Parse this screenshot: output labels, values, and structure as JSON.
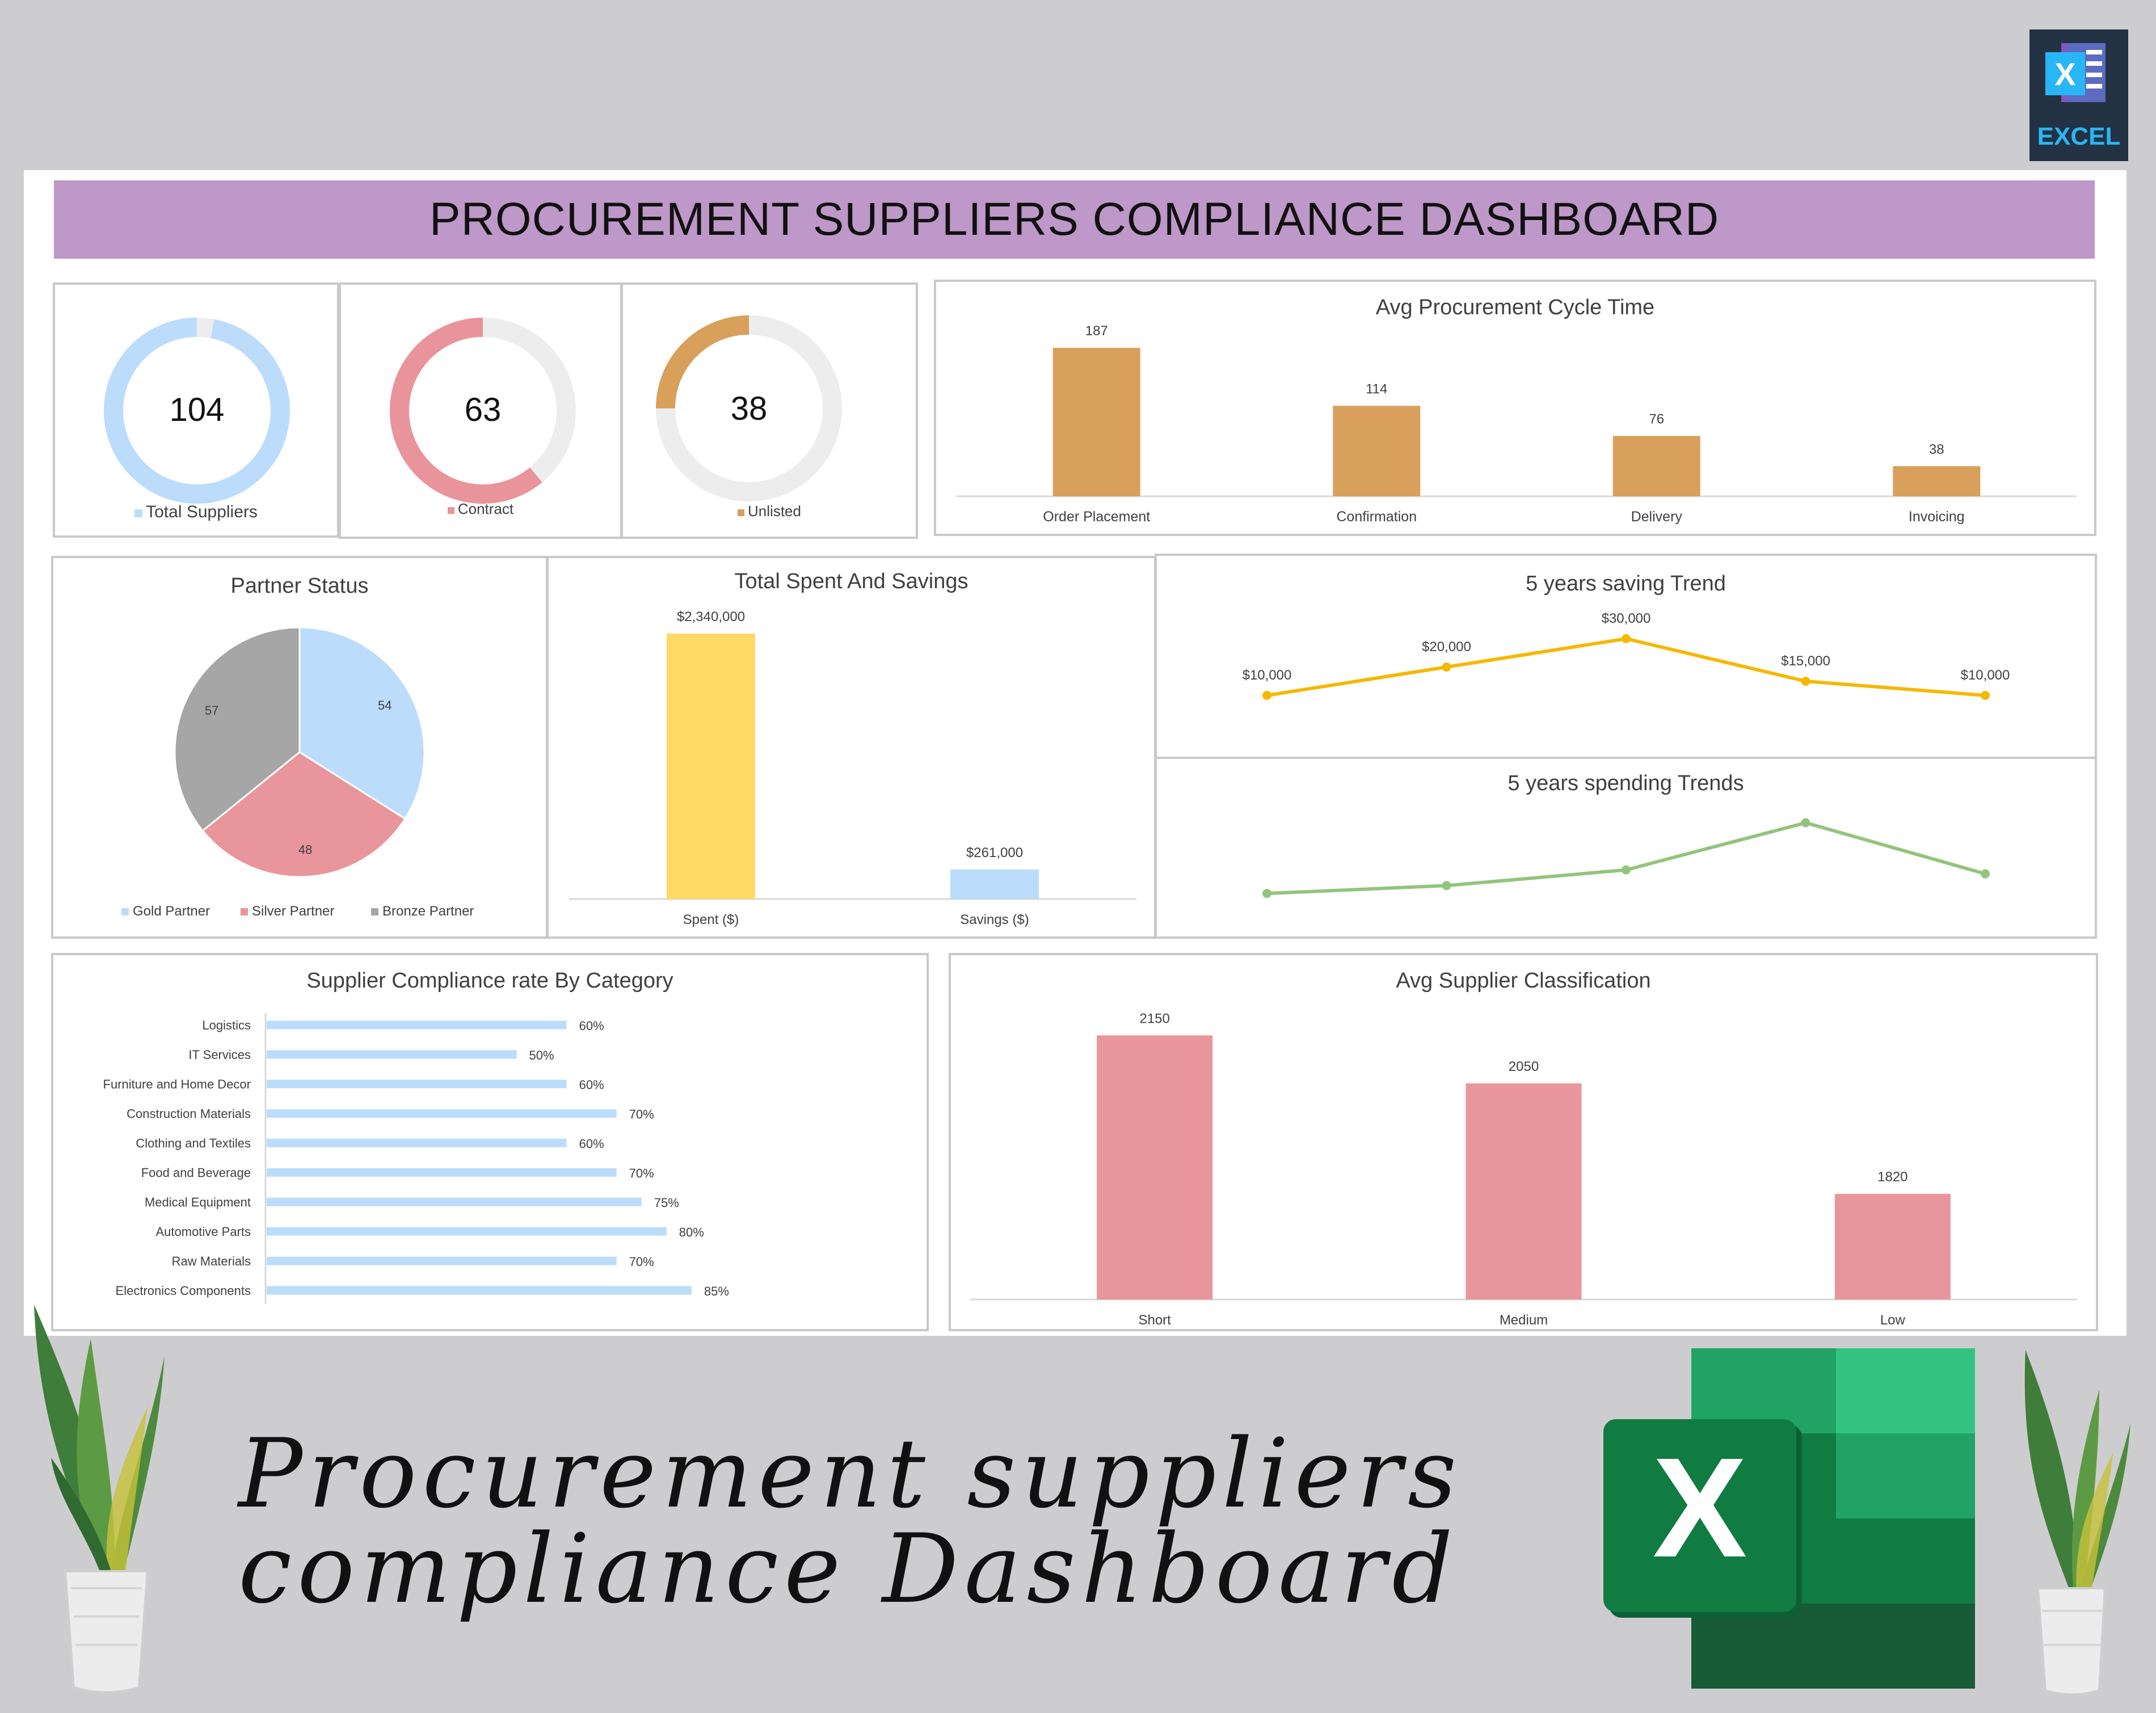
{
  "badge": {
    "label": "EXCEL"
  },
  "dashboard": {
    "title": "PROCUREMENT SUPPLIERS COMPLIANCE DASHBOARD"
  },
  "kpis": [
    {
      "value": "104",
      "label": "Total Suppliers",
      "fraction": 0.97,
      "color": "#bcdcfb"
    },
    {
      "value": "63",
      "label": "Contract",
      "fraction": 0.61,
      "color": "#e8949a"
    },
    {
      "value": "38",
      "label": "Unlisted",
      "fraction": 0.25,
      "color": "#d9a05b"
    }
  ],
  "colors": {
    "banner": "#be98c8",
    "orange": "#d9a05b",
    "pink": "#e8969c",
    "blue": "#bcdcfb",
    "gray": "#a6a6a6",
    "yellow": "#ffd966",
    "gold_line": "#f5b800",
    "green_line": "#93c47d"
  },
  "cycle_chart": {
    "title": "Avg Procurement Cycle Time",
    "type": "bar",
    "categories": [
      "Order Placement",
      "Confirmation",
      "Delivery",
      "Invoicing"
    ],
    "values": [
      187,
      114,
      76,
      38
    ],
    "value_labels": [
      "187",
      "114",
      "76",
      "38"
    ],
    "ylim": [
      0,
      200
    ]
  },
  "partner_chart": {
    "title": "Partner Status",
    "type": "pie",
    "series": [
      {
        "name": "Gold Partner",
        "value": 54,
        "label": "54",
        "color": "#bcdcfb"
      },
      {
        "name": "Silver Partner",
        "value": 48,
        "label": "48",
        "color": "#e8969c"
      },
      {
        "name": "Bronze Partner",
        "value": 57,
        "label": "57",
        "color": "#a6a6a6"
      }
    ]
  },
  "spent_chart": {
    "title": "Total Spent And Savings",
    "type": "bar",
    "categories": [
      "Spent ($)",
      "Savings ($)"
    ],
    "values": [
      2340000,
      261000
    ],
    "value_labels": [
      "$2,340,000",
      "$261,000"
    ],
    "colors": [
      "#ffd966",
      "#bcdcfb"
    ],
    "ylim": [
      0,
      2600000
    ]
  },
  "saving_trend": {
    "title": "5 years saving Trend",
    "type": "line",
    "values": [
      10000,
      20000,
      30000,
      15000,
      10000
    ],
    "value_labels": [
      "$10,000",
      "$20,000",
      "$30,000",
      "$15,000",
      "$10,000"
    ],
    "ylim": [
      0,
      36000
    ]
  },
  "spending_trend": {
    "title": "5 years spending Trends",
    "type": "line",
    "values": [
      1,
      2,
      4,
      10,
      3.5
    ],
    "ylim": [
      0,
      13
    ]
  },
  "compliance_chart": {
    "title": "Supplier Compliance rate By Category",
    "type": "bar",
    "orientation": "horizontal",
    "categories": [
      "Logistics",
      "IT Services",
      "Furniture and Home Decor",
      "Construction Materials",
      "Clothing and Textiles",
      "Food and Beverage",
      "Medical Equipment",
      "Automotive Parts",
      "Raw Materials",
      "Electronics Components"
    ],
    "values": [
      60,
      50,
      60,
      70,
      60,
      70,
      75,
      80,
      70,
      85
    ],
    "value_labels": [
      "60%",
      "50%",
      "60%",
      "70%",
      "60%",
      "70%",
      "75%",
      "80%",
      "70%",
      "85%"
    ],
    "xlim": [
      0,
      100
    ]
  },
  "classification_chart": {
    "title": "Avg Supplier Classification",
    "type": "bar",
    "categories": [
      "Short",
      "Medium",
      "Low"
    ],
    "values": [
      2150,
      2050,
      1820
    ],
    "value_labels": [
      "2150",
      "2050",
      "1820"
    ],
    "ylim": [
      1600,
      2200
    ]
  },
  "caption": {
    "line1": "Procurement suppliers",
    "line2": "compliance Dashboard"
  },
  "excel_logo": {
    "letter": "X"
  },
  "excel_badge": {
    "letter": "X"
  }
}
